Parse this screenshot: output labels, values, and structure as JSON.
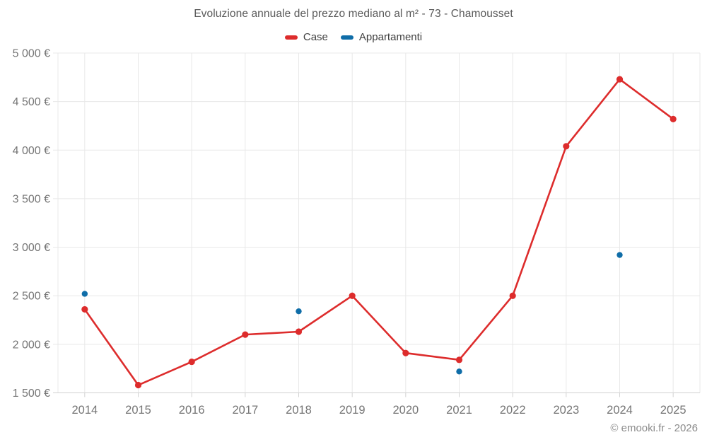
{
  "chart": {
    "title": "Evoluzione annuale del prezzo mediano al m² - 73 - Chamousset",
    "footer": "© emooki.fr - 2026"
  },
  "chart_data": {
    "type": "line",
    "title": "Evoluzione annuale del prezzo mediano al m² - 73 - Chamousset",
    "categories": [
      "2014",
      "2015",
      "2016",
      "2017",
      "2018",
      "2019",
      "2020",
      "2021",
      "2022",
      "2023",
      "2024",
      "2025"
    ],
    "series": [
      {
        "name": "Case",
        "color": "#dd2c2c",
        "style": "line-with-points",
        "values": [
          2360,
          1580,
          1820,
          2100,
          2130,
          2500,
          1910,
          1840,
          2500,
          4040,
          4730,
          4320
        ]
      },
      {
        "name": "Appartamenti",
        "color": "#0f6da8",
        "style": "points-only",
        "values": [
          2520,
          null,
          null,
          null,
          2340,
          null,
          null,
          1720,
          null,
          null,
          2920,
          null
        ]
      }
    ],
    "xlabel": "",
    "ylabel": "",
    "ylim": [
      1500,
      5000
    ],
    "ytick_step": 500,
    "ytick_suffix": " €",
    "grid": true,
    "legend_position": "top",
    "colors": {
      "grid": "#e8e8e8",
      "axis_line": "#d2d2d2",
      "tick_text": "#757575",
      "title_text": "#595959",
      "footer_text": "#8b8b8b"
    }
  }
}
